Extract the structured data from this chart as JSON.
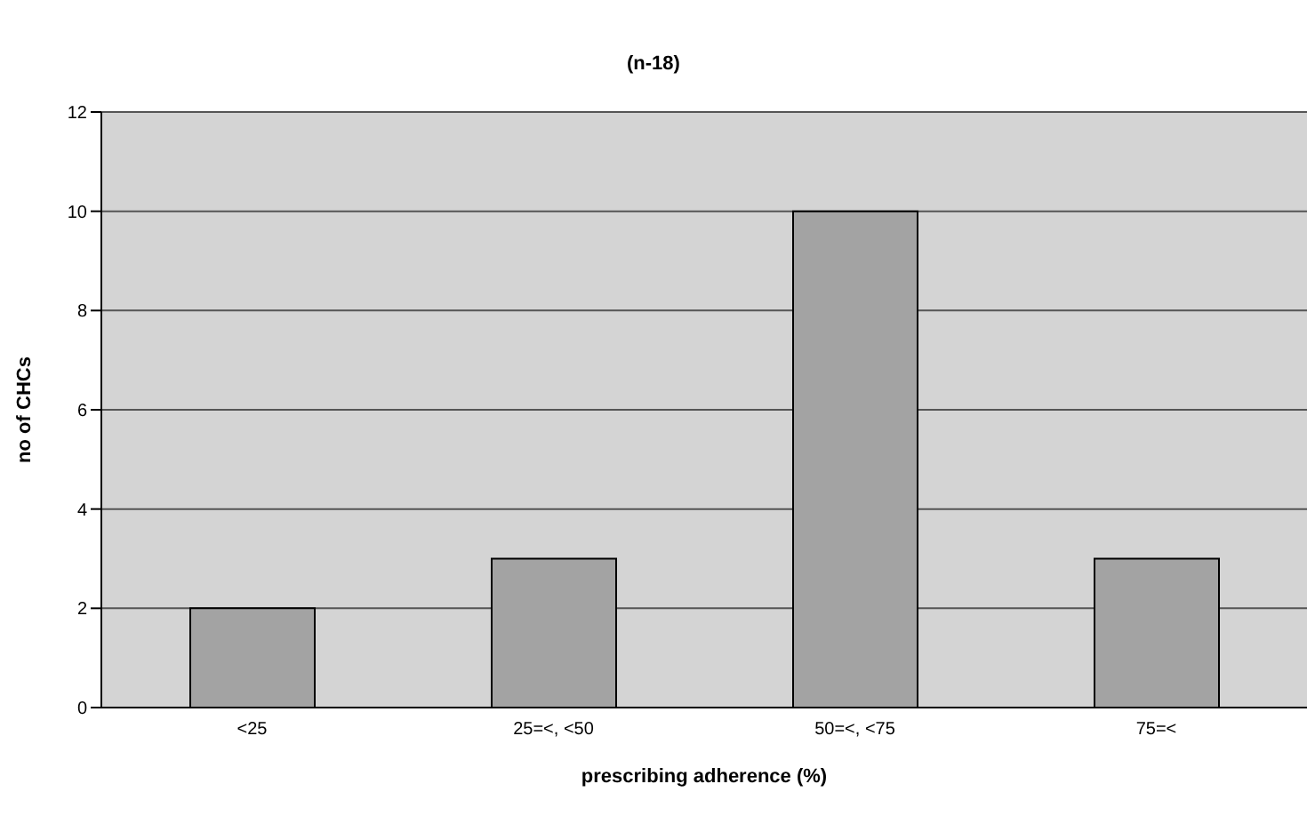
{
  "chart_data": {
    "type": "bar",
    "title": "(n-18)",
    "xlabel": "prescribing adherence (%)",
    "ylabel": "no of CHCs",
    "categories": [
      "<25",
      "25=<, <50",
      "50=<, <75",
      "75=<"
    ],
    "values": [
      2,
      3,
      10,
      3
    ],
    "color": "#a3a3a3",
    "ylim": [
      0,
      12
    ],
    "yticks": [
      0,
      2,
      4,
      6,
      8,
      10,
      12
    ],
    "grid": "y"
  }
}
